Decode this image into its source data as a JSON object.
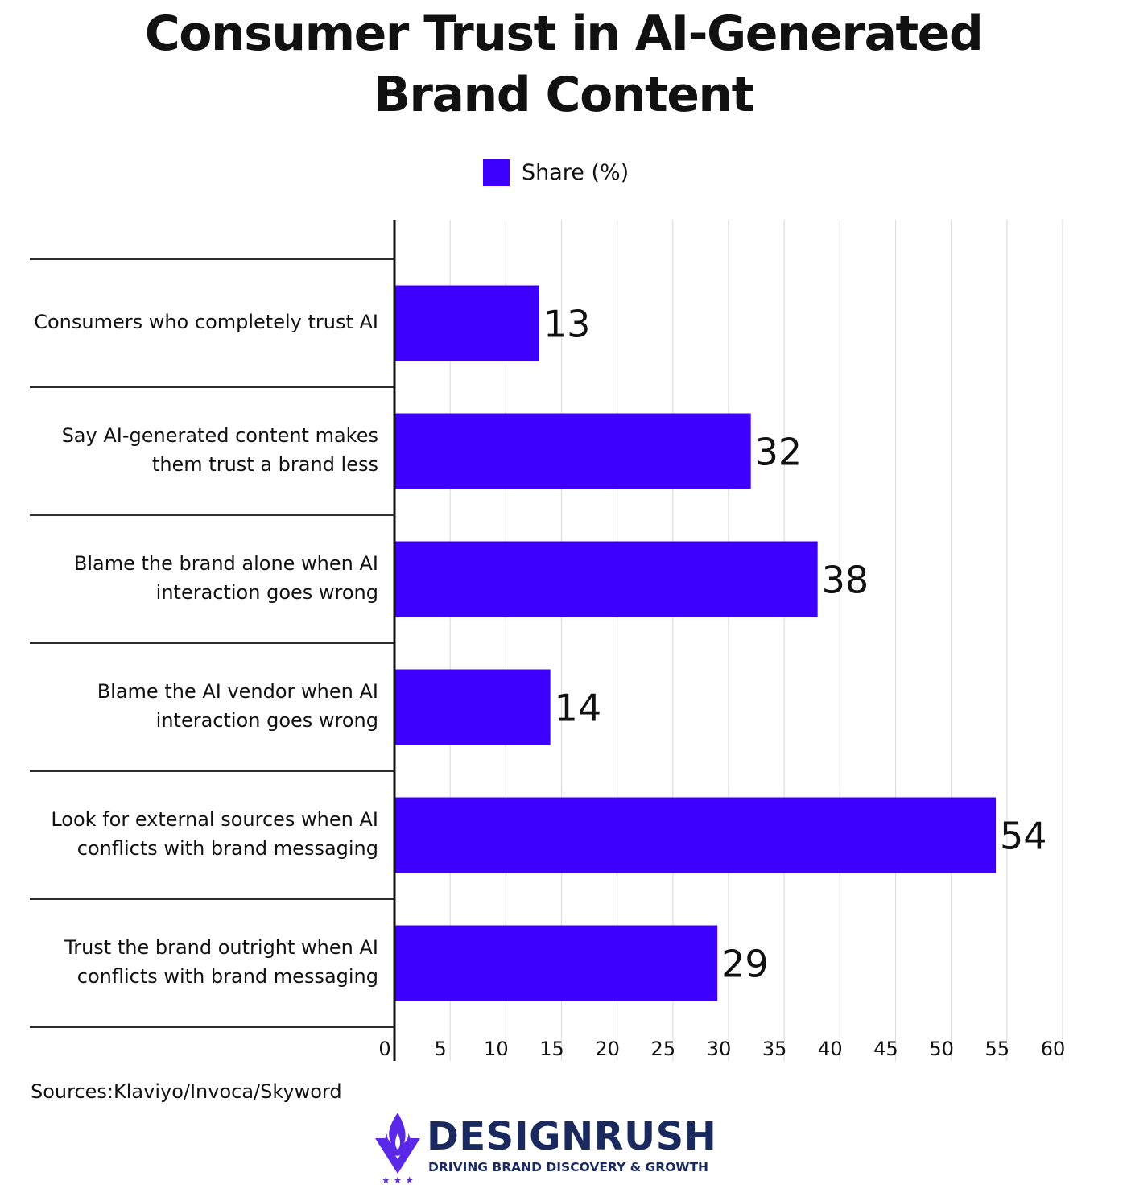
{
  "title_lines": [
    "Consumer Trust in AI-Generated",
    "Brand Content"
  ],
  "legend": {
    "label": "Share (%)"
  },
  "colors": {
    "bar": "#3d00ff",
    "text": "#111111",
    "grid": "#dddddd",
    "axis": "#111111",
    "brand": "#1b2a5e",
    "brand_accent": "#5a28e6"
  },
  "chart_data": {
    "type": "bar",
    "orientation": "horizontal",
    "categories": [
      [
        "Consumers who completely trust AI"
      ],
      [
        "Say AI-generated content makes",
        "them trust a brand less"
      ],
      [
        "Blame the brand alone when AI",
        "interaction goes wrong"
      ],
      [
        "Blame the AI vendor when AI",
        "interaction goes wrong"
      ],
      [
        "Look for external sources when AI",
        "conflicts with brand messaging"
      ],
      [
        "Trust the brand outright when AI",
        "conflicts with brand messaging"
      ]
    ],
    "series": [
      {
        "name": "Share (%)",
        "values": [
          13,
          32,
          38,
          14,
          54,
          29
        ]
      }
    ],
    "xlim": [
      0,
      60
    ],
    "xticks": [
      "0",
      "5",
      "10",
      "15",
      "20",
      "25",
      "30",
      "35",
      "40",
      "45",
      "50",
      "55",
      "60"
    ],
    "grid": true,
    "legend_position": "top"
  },
  "source": "Sources:Klaviyo/Invoca/Skyword",
  "brand": {
    "name": "DESIGNRUSH",
    "tagline": "DRIVING BRAND DISCOVERY & GROWTH",
    "stars": "★ ★ ★",
    "logo_icon": "flame-shield-icon"
  }
}
